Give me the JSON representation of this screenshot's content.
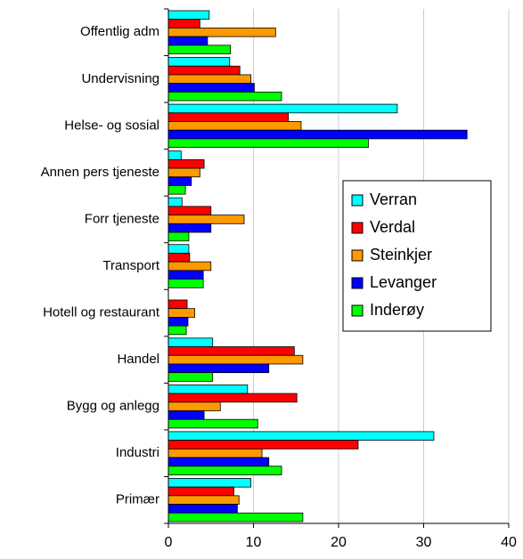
{
  "chart_data": {
    "type": "hbar",
    "categories": [
      "Offentlig adm",
      "Undervisning",
      "Helse- og sosial",
      "Annen pers tjeneste",
      "Forr tjeneste",
      "Transport",
      "Hotell og restaurant",
      "Handel",
      "Bygg og anlegg",
      "Industri",
      "Primær"
    ],
    "series": [
      {
        "name": "Verran",
        "color": "#00ffff",
        "values": [
          4.8,
          7.2,
          26.9,
          1.5,
          1.6,
          2.4,
          0,
          5.2,
          9.3,
          31.2,
          9.7
        ]
      },
      {
        "name": "Verdal",
        "color": "#ff0000",
        "values": [
          3.7,
          8.4,
          14.1,
          4.2,
          5.0,
          2.5,
          2.2,
          14.8,
          15.1,
          22.3,
          7.7
        ]
      },
      {
        "name": "Steinkjer",
        "color": "#ff9900",
        "values": [
          12.6,
          9.7,
          15.6,
          3.7,
          8.9,
          5.0,
          3.1,
          15.8,
          6.1,
          11.0,
          8.3
        ]
      },
      {
        "name": "Levanger",
        "color": "#0000ff",
        "values": [
          4.6,
          10.1,
          35.1,
          2.7,
          5.0,
          4.1,
          2.3,
          11.8,
          4.2,
          11.8,
          8.1
        ]
      },
      {
        "name": "Inderøy",
        "color": "#00ff00",
        "values": [
          7.3,
          13.3,
          23.5,
          2.0,
          2.4,
          4.1,
          2.1,
          5.2,
          10.5,
          13.3,
          15.8
        ]
      }
    ],
    "xlim": [
      0,
      40
    ],
    "xticks": [
      0,
      10,
      20,
      30,
      40
    ],
    "grid": true,
    "legend": "right"
  }
}
